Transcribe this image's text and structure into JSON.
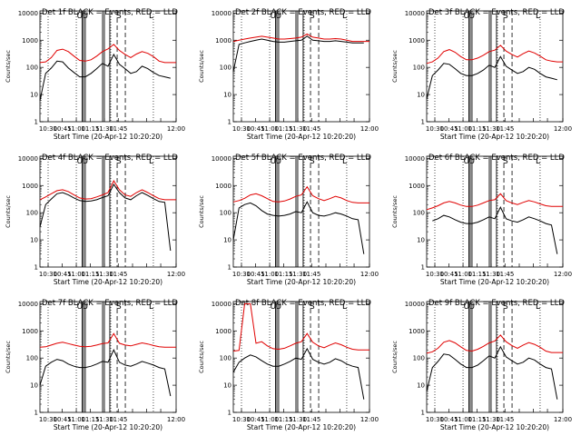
{
  "chart_data": [
    {
      "type": "line",
      "title": "Det 1f BLACK = Events, RED = LLD",
      "xlabel": "Start Time (20-Apr-12 10:20:20)",
      "ylabel": "Counts/sec",
      "xticks": [
        "10:30",
        "10:45",
        "11:00",
        "11:15",
        "11:30",
        "11:45"
      ],
      "yticks": [
        "1",
        "10",
        "100",
        "1000",
        "10000"
      ],
      "ylog": true,
      "ylim": [
        1,
        12000
      ],
      "markers": [
        "U",
        "U",
        "S",
        "L"
      ],
      "series": [
        {
          "color": "#e00000",
          "values": [
            150,
            160,
            230,
            420,
            470,
            380,
            260,
            180,
            170,
            190,
            260,
            380,
            480,
            700,
            420,
            300,
            230,
            310,
            380,
            330,
            250,
            170,
            150,
            150,
            150
          ]
        },
        {
          "color": "#000000",
          "values": [
            6,
            60,
            95,
            170,
            160,
            95,
            65,
            45,
            45,
            60,
            90,
            140,
            110,
            300,
            130,
            90,
            60,
            70,
            110,
            90,
            65,
            50,
            45,
            40,
            null
          ]
        }
      ]
    },
    {
      "type": "line",
      "title": "Det 2f BLACK = Events, RED = LLD",
      "xlabel": "Start Time (20-Apr-12 10:20:20)",
      "ylabel": "Counts/sec",
      "xticks": [
        "10:30",
        "10:45",
        "11:00",
        "11:15",
        "11:30",
        "11:45"
      ],
      "yticks": [
        "1",
        "10",
        "100",
        "1000",
        "10000"
      ],
      "ylog": true,
      "ylim": [
        1,
        12000
      ],
      "markers": [
        "U",
        "U",
        "S",
        "L"
      ],
      "series": [
        {
          "color": "#e00000",
          "values": [
            900,
            1000,
            1100,
            1200,
            1300,
            1400,
            1300,
            1200,
            1100,
            1100,
            1150,
            1200,
            1300,
            1700,
            1300,
            1200,
            1100,
            1100,
            1150,
            1100,
            1000,
            900,
            900,
            900,
            900
          ]
        },
        {
          "color": "#000000",
          "values": [
            70,
            700,
            800,
            900,
            1000,
            1100,
            1000,
            900,
            850,
            850,
            900,
            950,
            1000,
            1400,
            1000,
            950,
            900,
            900,
            950,
            900,
            850,
            800,
            800,
            800,
            null
          ]
        }
      ]
    },
    {
      "type": "line",
      "title": "Det 3f BLACK = Events, RED = LLD",
      "xlabel": "Start Time (20-Apr-12 10:20:20)",
      "ylabel": "Counts/sec",
      "xticks": [
        "10:30",
        "10:45",
        "11:00",
        "11:15",
        "11:30",
        "11:45"
      ],
      "yticks": [
        "1",
        "10",
        "100",
        "1000",
        "10000"
      ],
      "ylog": true,
      "ylim": [
        1,
        12000
      ],
      "markers": [
        "U",
        "U",
        "S",
        "L"
      ],
      "series": [
        {
          "color": "#e00000",
          "values": [
            140,
            160,
            220,
            380,
            450,
            360,
            250,
            190,
            190,
            220,
            280,
            380,
            430,
            650,
            400,
            300,
            240,
            320,
            400,
            340,
            260,
            190,
            170,
            160,
            160
          ]
        },
        {
          "color": "#000000",
          "values": [
            7,
            50,
            80,
            140,
            130,
            90,
            60,
            50,
            50,
            60,
            80,
            120,
            100,
            250,
            110,
            80,
            60,
            70,
            100,
            85,
            60,
            45,
            40,
            35,
            null
          ]
        }
      ]
    },
    {
      "type": "line",
      "title": "Det 4f BLACK = Events, RED = LLD",
      "xlabel": "Start Time (20-Apr-12 10:20:20)",
      "ylabel": "Counts/sec",
      "xticks": [
        "10:30",
        "10:45",
        "11:00",
        "11:15",
        "11:30",
        "11:45"
      ],
      "yticks": [
        "1",
        "10",
        "100",
        "1000",
        "10000"
      ],
      "ylog": true,
      "ylim": [
        1,
        12000
      ],
      "markers": [
        "U",
        "U",
        "S",
        "L"
      ],
      "series": [
        {
          "color": "#e00000",
          "values": [
            300,
            380,
            500,
            650,
            700,
            600,
            450,
            350,
            320,
            330,
            380,
            450,
            550,
            1500,
            700,
            450,
            400,
            550,
            700,
            550,
            420,
            330,
            300,
            300,
            300
          ]
        },
        {
          "color": "#000000",
          "values": [
            30,
            200,
            320,
            500,
            550,
            450,
            350,
            280,
            260,
            270,
            300,
            360,
            420,
            1100,
            550,
            350,
            300,
            420,
            550,
            430,
            330,
            260,
            240,
            4,
            null
          ]
        }
      ]
    },
    {
      "type": "line",
      "title": "Det 5f BLACK = Events, RED = LLD",
      "xlabel": "Start Time (20-Apr-12 10:20:20)",
      "ylabel": "Counts/sec",
      "xticks": [
        "10:30",
        "10:45",
        "11:00",
        "11:15",
        "11:30",
        "11:45"
      ],
      "yticks": [
        "1",
        "10",
        "100",
        "1000",
        "10000"
      ],
      "ylog": true,
      "ylim": [
        1,
        12000
      ],
      "markers": [
        "U",
        "U",
        "S",
        "L"
      ],
      "series": [
        {
          "color": "#e00000",
          "values": [
            250,
            280,
            340,
            450,
            500,
            420,
            330,
            260,
            250,
            270,
            320,
            400,
            450,
            900,
            420,
            330,
            280,
            330,
            400,
            350,
            280,
            240,
            230,
            230,
            230
          ]
        },
        {
          "color": "#000000",
          "values": [
            10,
            150,
            200,
            230,
            180,
            120,
            90,
            80,
            75,
            80,
            90,
            110,
            100,
            250,
            100,
            80,
            75,
            85,
            100,
            90,
            75,
            60,
            55,
            3,
            null
          ]
        }
      ]
    },
    {
      "type": "line",
      "title": "Det 6f BLACK = Events, RED = LLD",
      "xlabel": "Start Time (20-Apr-12 10:20:20)",
      "ylabel": "Counts/sec",
      "xticks": [
        "10:30",
        "10:45",
        "11:00",
        "11:15",
        "11:30",
        "11:45"
      ],
      "yticks": [
        "1",
        "10",
        "100",
        "1000",
        "10000"
      ],
      "ylog": true,
      "ylim": [
        1,
        12000
      ],
      "markers": [
        "U",
        "U",
        "S",
        "L"
      ],
      "series": [
        {
          "color": "#e00000",
          "values": [
            130,
            150,
            180,
            230,
            260,
            230,
            190,
            170,
            170,
            190,
            230,
            280,
            300,
            500,
            280,
            230,
            200,
            240,
            280,
            250,
            210,
            180,
            170,
            170,
            170
          ]
        },
        {
          "color": "#000000",
          "values": [
            null,
            50,
            60,
            80,
            70,
            55,
            45,
            40,
            40,
            45,
            55,
            70,
            60,
            160,
            60,
            50,
            45,
            55,
            70,
            60,
            50,
            40,
            35,
            3,
            null
          ]
        }
      ]
    },
    {
      "type": "line",
      "title": "Det 7f BLACK = Events, RED = LLD",
      "xlabel": "Start Time (20-Apr-12 10:20:20)",
      "ylabel": "Counts/sec",
      "xticks": [
        "10:30",
        "10:45",
        "11:00",
        "11:15",
        "11:30",
        "11:45"
      ],
      "yticks": [
        "1",
        "10",
        "100",
        "1000",
        "10000"
      ],
      "ylog": true,
      "ylim": [
        1,
        12000
      ],
      "markers": [
        "U",
        "U",
        "S",
        "L"
      ],
      "series": [
        {
          "color": "#e00000",
          "values": [
            250,
            260,
            300,
            350,
            380,
            340,
            300,
            270,
            260,
            270,
            300,
            340,
            360,
            800,
            350,
            300,
            280,
            320,
            360,
            330,
            290,
            260,
            250,
            250,
            250
          ]
        },
        {
          "color": "#000000",
          "values": [
            10,
            50,
            70,
            90,
            80,
            60,
            50,
            45,
            45,
            50,
            60,
            75,
            70,
            200,
            70,
            55,
            50,
            60,
            75,
            65,
            55,
            45,
            40,
            4,
            null
          ]
        }
      ]
    },
    {
      "type": "line",
      "title": "Det 8f BLACK = Events, RED = LLD",
      "xlabel": "Start Time (20-Apr-12 10:20:20)",
      "ylabel": "Counts/sec",
      "xticks": [
        "10:30",
        "10:45",
        "11:00",
        "11:15",
        "11:30",
        "11:45"
      ],
      "yticks": [
        "1",
        "10",
        "100",
        "1000",
        "10000"
      ],
      "ylog": true,
      "ylim": [
        1,
        12000
      ],
      "markers": [
        "U",
        "U",
        "S",
        "L"
      ],
      "series": [
        {
          "color": "#e00000",
          "values": [
            180,
            190,
            10000,
            10000,
            350,
            400,
            280,
            220,
            210,
            230,
            280,
            350,
            400,
            800,
            380,
            280,
            240,
            300,
            360,
            310,
            250,
            210,
            200,
            200,
            200
          ]
        },
        {
          "color": "#000000",
          "values": [
            30,
            70,
            100,
            130,
            110,
            80,
            60,
            50,
            50,
            60,
            75,
            100,
            90,
            220,
            90,
            70,
            60,
            70,
            95,
            80,
            60,
            50,
            45,
            3,
            null
          ]
        }
      ]
    },
    {
      "type": "line",
      "title": "Det 9f BLACK = Events, RED = LLD",
      "xlabel": "Start Time (20-Apr-12 10:20:20)",
      "ylabel": "Counts/sec",
      "xticks": [
        "10:30",
        "10:45",
        "11:00",
        "11:15",
        "11:30",
        "11:45"
      ],
      "yticks": [
        "1",
        "10",
        "100",
        "1000",
        "10000"
      ],
      "ylog": true,
      "ylim": [
        1,
        12000
      ],
      "markers": [
        "U",
        "U",
        "S",
        "L"
      ],
      "series": [
        {
          "color": "#e00000",
          "values": [
            150,
            170,
            230,
            380,
            440,
            360,
            260,
            190,
            180,
            210,
            270,
            360,
            420,
            700,
            400,
            290,
            230,
            300,
            370,
            320,
            250,
            180,
            160,
            160,
            160
          ]
        },
        {
          "color": "#000000",
          "values": [
            6,
            45,
            75,
            140,
            130,
            90,
            60,
            45,
            45,
            55,
            80,
            120,
            100,
            260,
            110,
            80,
            60,
            70,
            100,
            85,
            60,
            45,
            40,
            3,
            null
          ]
        }
      ]
    }
  ]
}
